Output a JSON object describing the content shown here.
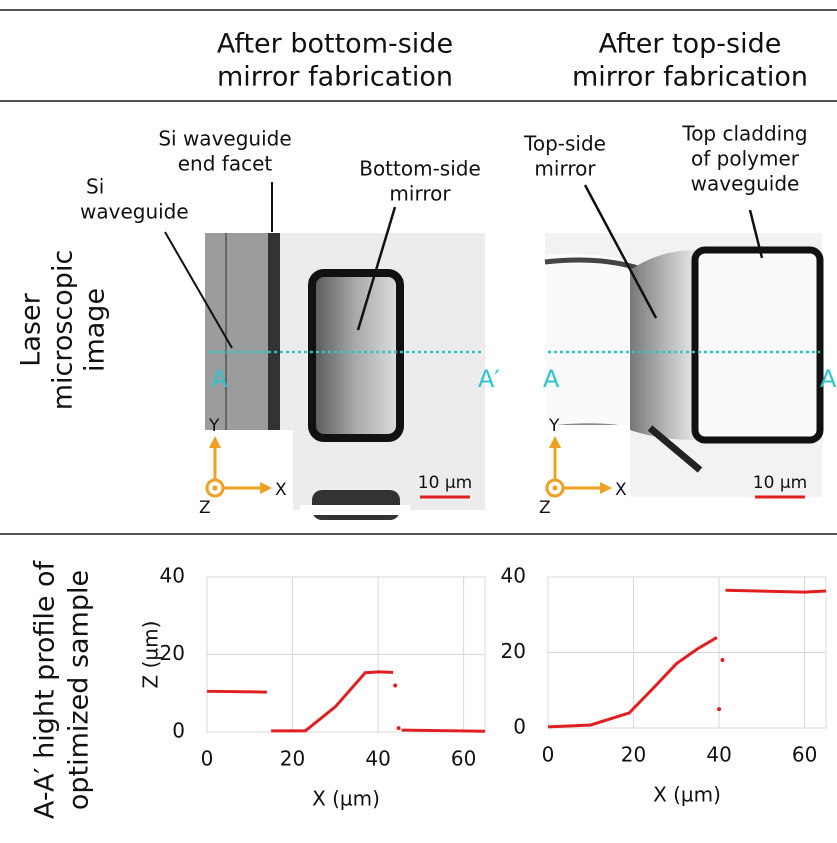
{
  "header": {
    "columns": [
      [
        "After bottom-side",
        "mirror fabrication"
      ],
      [
        "After top-side",
        "mirror fabrication"
      ]
    ]
  },
  "rows": [
    [
      "Laser",
      "microscopic",
      "image"
    ],
    [
      "A-A′ hight profile of",
      "optimized sample"
    ]
  ],
  "images": [
    {
      "annotations": [
        [
          "Si",
          "waveguide"
        ],
        [
          "Si waveguide",
          "end facet"
        ],
        [
          "Bottom-side",
          "mirror"
        ]
      ],
      "section_start": "A",
      "section_end": "A′",
      "scale_bar": "10 µm",
      "axes": [
        "X",
        "Y",
        "Z"
      ]
    },
    {
      "annotations": [
        [
          "Top-side",
          "mirror"
        ],
        [
          "Top cladding",
          "of polymer",
          "waveguide"
        ]
      ],
      "section_start": "A",
      "section_end": "A",
      "scale_bar": "10 µm",
      "axes": [
        "X",
        "Y",
        "Z"
      ]
    }
  ],
  "chart_data": [
    {
      "type": "line",
      "xlabel": "X (µm)",
      "ylabel": "Z (µm)",
      "grid": true,
      "xlim": [
        0,
        65
      ],
      "ylim": [
        0,
        40
      ],
      "xticks": [
        0,
        20,
        40,
        60
      ],
      "yticks": [
        0,
        20,
        40
      ],
      "series": [
        {
          "color": "#e02020",
          "x": [
            0,
            14,
            14.5,
            15,
            23,
            30,
            37,
            40,
            43.5,
            43.8,
            44,
            44.4,
            44.8,
            45.1,
            45.5,
            65
          ],
          "values": [
            10.5,
            10.3,
            null,
            0.3,
            0.3,
            6.5,
            15.3,
            15.5,
            15.4,
            null,
            12,
            null,
            1,
            null,
            0.5,
            0.2
          ]
        }
      ]
    },
    {
      "type": "line",
      "xlabel": "X (µm)",
      "grid": true,
      "xlim": [
        0,
        65
      ],
      "ylim": [
        0,
        40
      ],
      "xticks": [
        0,
        20,
        40,
        60
      ],
      "yticks": [
        0,
        20,
        40
      ],
      "series": [
        {
          "color": "#e02020",
          "x": [
            0,
            10,
            19,
            25,
            30,
            35,
            39.5,
            39.7,
            40,
            40.3,
            40.8,
            41,
            41.5,
            60,
            65
          ],
          "values": [
            0.3,
            0.8,
            4,
            11,
            17,
            21,
            24,
            null,
            5,
            null,
            18,
            null,
            36.5,
            36,
            36.3
          ]
        }
      ]
    }
  ]
}
